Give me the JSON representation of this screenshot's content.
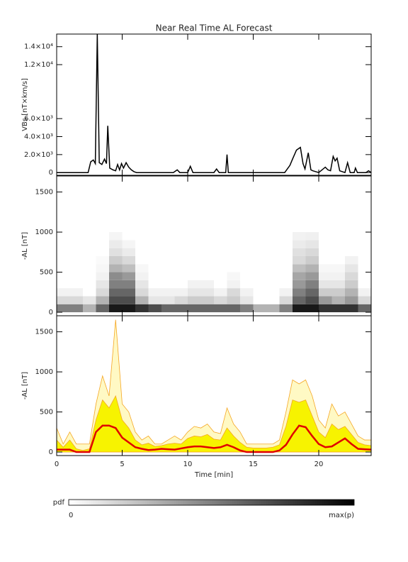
{
  "chart_data": [
    {
      "type": "line",
      "title": "Near Real Time AL Forecast",
      "ylabel": "VBs [nT×km/s]",
      "xlim": [
        0,
        24
      ],
      "xticks": [
        0,
        5,
        10,
        15,
        20
      ],
      "ylim": [
        -300,
        15400
      ],
      "yticks": [
        0,
        {
          "value": 2000,
          "label": "2.0×10³"
        },
        {
          "value": 4000,
          "label": "4.0×10³"
        },
        {
          "value": 6000,
          "label": "6.0×10³"
        },
        {
          "value": 12000,
          "label": "1.2×10⁴"
        },
        {
          "value": 14000,
          "label": "1.4×10⁴"
        }
      ],
      "color": "#000000",
      "x": [
        0,
        2.4,
        2.6,
        2.8,
        2.95,
        3.1,
        3.25,
        3.45,
        3.65,
        3.8,
        3.9,
        4.05,
        4.3,
        4.5,
        4.65,
        4.8,
        4.95,
        5.1,
        5.3,
        5.5,
        5.7,
        5.9,
        6.1,
        8.9,
        9.2,
        9.4,
        10.0,
        10.2,
        10.4,
        12.0,
        12.2,
        12.4,
        12.9,
        13.0,
        13.1,
        17.4,
        17.8,
        18.0,
        18.3,
        18.6,
        18.8,
        18.95,
        19.2,
        19.4,
        19.55,
        20.0,
        20.5,
        20.7,
        20.9,
        21.1,
        21.25,
        21.4,
        21.6,
        22.0,
        22.2,
        22.4,
        22.7,
        22.8,
        22.95,
        23.6,
        23.8,
        24
      ],
      "values": [
        0,
        0,
        1200,
        1400,
        1000,
        15400,
        1100,
        900,
        1500,
        1000,
        5200,
        500,
        300,
        200,
        900,
        300,
        1000,
        500,
        1100,
        600,
        300,
        100,
        0,
        0,
        300,
        0,
        0,
        700,
        0,
        0,
        400,
        0,
        0,
        2000,
        0,
        0,
        800,
        1500,
        2500,
        2800,
        1000,
        400,
        2200,
        300,
        200,
        0,
        600,
        300,
        200,
        1800,
        1300,
        1600,
        200,
        0,
        1100,
        0,
        0,
        500,
        0,
        0,
        200,
        0
      ]
    },
    {
      "type": "heatmap",
      "ylabel": "-AL [nT]",
      "xlim": [
        0,
        24
      ],
      "xticks": [
        0,
        5,
        10,
        15,
        20
      ],
      "ylim": [
        -44,
        1700
      ],
      "yticks": [
        0,
        500,
        1000,
        1500
      ],
      "x_edges": [
        0,
        1,
        2,
        3,
        4,
        5,
        6,
        7,
        8,
        9,
        10,
        11,
        12,
        13,
        14,
        15,
        16,
        17,
        18,
        19,
        20,
        21,
        22,
        23,
        24
      ],
      "y_edges": [
        0,
        100,
        200,
        300,
        400,
        500,
        600,
        700,
        800,
        900,
        1000
      ],
      "z": [
        [
          0.5,
          0.5,
          0.3,
          0.6,
          0.9,
          0.9,
          0.8,
          0.7,
          0.6,
          0.6,
          0.6,
          0.6,
          0.6,
          0.6,
          0.5,
          0.3,
          0.3,
          0.5,
          0.9,
          0.9,
          0.8,
          0.8,
          0.8,
          0.6
        ],
        [
          0.15,
          0.15,
          0.1,
          0.3,
          0.7,
          0.7,
          0.3,
          0.1,
          0.1,
          0.15,
          0.2,
          0.2,
          0.15,
          0.2,
          0.1,
          0,
          0,
          0.15,
          0.6,
          0.7,
          0.4,
          0.3,
          0.4,
          0.15
        ],
        [
          0.05,
          0.05,
          0,
          0.15,
          0.6,
          0.6,
          0.15,
          0.05,
          0.05,
          0.05,
          0.1,
          0.1,
          0.05,
          0.15,
          0.05,
          0,
          0,
          0.05,
          0.5,
          0.6,
          0.2,
          0.2,
          0.3,
          0.05
        ],
        [
          0,
          0,
          0,
          0.1,
          0.5,
          0.5,
          0.1,
          0,
          0,
          0,
          0.05,
          0.05,
          0,
          0.05,
          0,
          0,
          0,
          0,
          0.4,
          0.5,
          0.1,
          0.1,
          0.2,
          0
        ],
        [
          0,
          0,
          0,
          0.05,
          0.45,
          0.4,
          0.05,
          0,
          0,
          0,
          0,
          0,
          0,
          0.03,
          0,
          0,
          0,
          0,
          0.35,
          0.4,
          0.05,
          0.05,
          0.15,
          0
        ],
        [
          0,
          0,
          0,
          0.03,
          0.3,
          0.25,
          0.03,
          0,
          0,
          0,
          0,
          0,
          0,
          0,
          0,
          0,
          0,
          0,
          0.25,
          0.3,
          0.03,
          0.03,
          0.1,
          0
        ],
        [
          0,
          0,
          0,
          0.02,
          0.2,
          0.15,
          0,
          0,
          0,
          0,
          0,
          0,
          0,
          0,
          0,
          0,
          0,
          0,
          0.15,
          0.2,
          0,
          0,
          0.05,
          0
        ],
        [
          0,
          0,
          0,
          0,
          0.12,
          0.08,
          0,
          0,
          0,
          0,
          0,
          0,
          0,
          0,
          0,
          0,
          0,
          0,
          0.12,
          0.15,
          0,
          0,
          0,
          0
        ],
        [
          0,
          0,
          0,
          0,
          0.08,
          0.04,
          0,
          0,
          0,
          0,
          0,
          0,
          0,
          0,
          0,
          0,
          0,
          0,
          0.08,
          0.1,
          0,
          0,
          0,
          0
        ],
        [
          0,
          0,
          0,
          0,
          0.04,
          0,
          0,
          0,
          0,
          0,
          0,
          0,
          0,
          0,
          0,
          0,
          0,
          0,
          0.05,
          0.06,
          0,
          0,
          0,
          0
        ]
      ],
      "colorbar": {
        "label": "pdf",
        "ticks": [
          0,
          {
            "value": 1,
            "label": "max(p)"
          }
        ]
      }
    },
    {
      "type": "area",
      "ylabel": "-AL [nT]",
      "xlabel": "Time [min]",
      "xlim": [
        0,
        24
      ],
      "xticks": [
        0,
        5,
        10,
        15,
        20
      ],
      "ylim": [
        -44,
        1700
      ],
      "yticks": [
        0,
        500,
        1000,
        1500
      ],
      "x": [
        0,
        0.5,
        1,
        1.5,
        2,
        2.5,
        3,
        3.5,
        4,
        4.5,
        5,
        5.5,
        6,
        6.5,
        7,
        7.5,
        8,
        8.5,
        9,
        9.5,
        10,
        10.5,
        11,
        11.5,
        12,
        12.5,
        13,
        13.5,
        14,
        14.5,
        15,
        15.5,
        16,
        16.5,
        17,
        17.5,
        18,
        18.5,
        19,
        19.5,
        20,
        20.5,
        21,
        21.5,
        22,
        22.5,
        23,
        23.5,
        24
      ],
      "series": [
        {
          "color": "#f5a623",
          "fill": "#fff9c4",
          "values": [
            300,
            100,
            250,
            100,
            100,
            100,
            600,
            950,
            700,
            1650,
            600,
            500,
            250,
            150,
            200,
            100,
            100,
            150,
            200,
            150,
            250,
            320,
            300,
            350,
            250,
            230,
            550,
            350,
            250,
            100,
            100,
            100,
            100,
            100,
            150,
            500,
            900,
            850,
            900,
            700,
            400,
            300,
            600,
            450,
            500,
            350,
            200,
            150,
            150
          ]
        },
        {
          "color": "#f5a623",
          "fill": "#f7f300",
          "values": [
            150,
            60,
            150,
            40,
            20,
            40,
            400,
            650,
            550,
            700,
            400,
            300,
            150,
            90,
            110,
            70,
            80,
            100,
            110,
            100,
            170,
            200,
            190,
            220,
            160,
            150,
            300,
            200,
            120,
            60,
            50,
            50,
            50,
            60,
            90,
            320,
            650,
            620,
            650,
            450,
            250,
            180,
            350,
            280,
            320,
            220,
            120,
            90,
            80
          ]
        },
        {
          "color": "#e00000",
          "values": [
            30,
            30,
            30,
            0,
            0,
            0,
            250,
            330,
            330,
            300,
            180,
            120,
            60,
            40,
            25,
            30,
            40,
            35,
            30,
            45,
            60,
            70,
            70,
            60,
            50,
            60,
            90,
            60,
            20,
            0,
            0,
            0,
            0,
            0,
            20,
            90,
            220,
            330,
            310,
            200,
            100,
            60,
            70,
            120,
            170,
            100,
            40,
            35,
            30
          ]
        }
      ]
    }
  ]
}
